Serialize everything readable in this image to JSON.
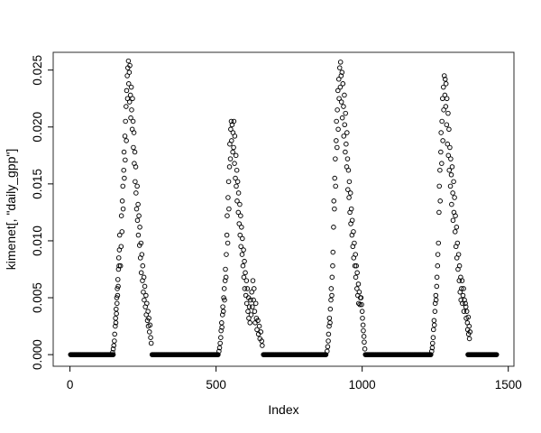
{
  "figure": {
    "background": "#ffffff",
    "frame_color": "#2b2b2b",
    "tick_color": "#000000",
    "point_color": "#000000"
  },
  "chart_data": {
    "type": "scatter",
    "title": "",
    "xlabel": "Index",
    "ylabel": "kimenet[, \"daily_gpp\"]",
    "marker": "open-circle",
    "grid": false,
    "legend": null,
    "x_ticks": [
      0,
      500,
      1000,
      1500
    ],
    "x_tick_labels": [
      "0",
      "500",
      "1000",
      "1500"
    ],
    "y_ticks": [
      0.0,
      0.005,
      0.01,
      0.015,
      0.02,
      0.025
    ],
    "y_tick_labels": [
      "0.000",
      "0.005",
      "0.010",
      "0.015",
      "0.020",
      "0.025"
    ],
    "x_range": [
      -57.4,
      1519.4
    ],
    "y_range": [
      -0.00102,
      0.02656
    ],
    "zero_value": 0.0,
    "zero_sample_step": 2,
    "zero_runs": [
      [
        2,
        148
      ],
      [
        281,
        507
      ],
      [
        662,
        877
      ],
      [
        1011,
        1236
      ],
      [
        1362,
        1460
      ]
    ],
    "points": [
      [
        146,
        0.0002
      ],
      [
        148,
        0.0005
      ],
      [
        150,
        0.0008
      ],
      [
        152,
        0.0012
      ],
      [
        153,
        0.0018
      ],
      [
        155,
        0.0025
      ],
      [
        156,
        0.0032
      ],
      [
        157,
        0.0028
      ],
      [
        158,
        0.004
      ],
      [
        159,
        0.0036
      ],
      [
        160,
        0.005
      ],
      [
        161,
        0.0045
      ],
      [
        162,
        0.0058
      ],
      [
        163,
        0.0052
      ],
      [
        164,
        0.0066
      ],
      [
        165,
        0.006
      ],
      [
        166,
        0.0075
      ],
      [
        167,
        0.0085
      ],
      [
        168,
        0.0078
      ],
      [
        169,
        0.0092
      ],
      [
        170,
        0.0105
      ],
      [
        173,
        0.0078
      ],
      [
        175,
        0.0095
      ],
      [
        176,
        0.0122
      ],
      [
        178,
        0.0108
      ],
      [
        179,
        0.0135
      ],
      [
        181,
        0.0148
      ],
      [
        182,
        0.0128
      ],
      [
        184,
        0.0162
      ],
      [
        185,
        0.0178
      ],
      [
        186,
        0.0155
      ],
      [
        188,
        0.0192
      ],
      [
        189,
        0.0171
      ],
      [
        190,
        0.0205
      ],
      [
        192,
        0.0218
      ],
      [
        193,
        0.0188
      ],
      [
        194,
        0.0232
      ],
      [
        196,
        0.0245
      ],
      [
        197,
        0.0225
      ],
      [
        198,
        0.0252
      ],
      [
        200,
        0.0258
      ],
      [
        201,
        0.0238
      ],
      [
        203,
        0.0248
      ],
      [
        204,
        0.0222
      ],
      [
        205,
        0.0254
      ],
      [
        207,
        0.0228
      ],
      [
        208,
        0.0208
      ],
      [
        210,
        0.0235
      ],
      [
        211,
        0.0215
      ],
      [
        213,
        0.0198
      ],
      [
        214,
        0.0225
      ],
      [
        216,
        0.0205
      ],
      [
        217,
        0.0182
      ],
      [
        219,
        0.0195
      ],
      [
        220,
        0.0168
      ],
      [
        222,
        0.0178
      ],
      [
        223,
        0.0152
      ],
      [
        225,
        0.0165
      ],
      [
        226,
        0.0142
      ],
      [
        228,
        0.0128
      ],
      [
        230,
        0.0148
      ],
      [
        231,
        0.0118
      ],
      [
        233,
        0.0132
      ],
      [
        234,
        0.0105
      ],
      [
        236,
        0.0122
      ],
      [
        238,
        0.0096
      ],
      [
        239,
        0.0112
      ],
      [
        241,
        0.0085
      ],
      [
        243,
        0.0098
      ],
      [
        244,
        0.0072
      ],
      [
        246,
        0.0088
      ],
      [
        248,
        0.0065
      ],
      [
        249,
        0.0078
      ],
      [
        251,
        0.0055
      ],
      [
        253,
        0.0068
      ],
      [
        254,
        0.0048
      ],
      [
        256,
        0.006
      ],
      [
        258,
        0.0042
      ],
      [
        260,
        0.0052
      ],
      [
        261,
        0.0035
      ],
      [
        263,
        0.0045
      ],
      [
        265,
        0.003
      ],
      [
        267,
        0.0038
      ],
      [
        268,
        0.0025
      ],
      [
        270,
        0.0032
      ],
      [
        272,
        0.002
      ],
      [
        274,
        0.0026
      ],
      [
        276,
        0.0015
      ],
      [
        278,
        0.001
      ],
      [
        510,
        0.0003
      ],
      [
        512,
        0.0006
      ],
      [
        514,
        0.001
      ],
      [
        516,
        0.0015
      ],
      [
        517,
        0.0021
      ],
      [
        519,
        0.0028
      ],
      [
        520,
        0.0024
      ],
      [
        522,
        0.0035
      ],
      [
        523,
        0.0042
      ],
      [
        525,
        0.0038
      ],
      [
        526,
        0.005
      ],
      [
        528,
        0.0058
      ],
      [
        529,
        0.0048
      ],
      [
        531,
        0.0065
      ],
      [
        532,
        0.0075
      ],
      [
        534,
        0.0068
      ],
      [
        535,
        0.0088
      ],
      [
        537,
        0.0105
      ],
      [
        538,
        0.0122
      ],
      [
        540,
        0.0098
      ],
      [
        541,
        0.0138
      ],
      [
        543,
        0.0152
      ],
      [
        544,
        0.0128
      ],
      [
        546,
        0.0165
      ],
      [
        547,
        0.0185
      ],
      [
        549,
        0.0172
      ],
      [
        550,
        0.0198
      ],
      [
        552,
        0.0205
      ],
      [
        553,
        0.0188
      ],
      [
        555,
        0.0202
      ],
      [
        557,
        0.0178
      ],
      [
        558,
        0.0195
      ],
      [
        560,
        0.0182
      ],
      [
        561,
        0.0205
      ],
      [
        563,
        0.0168
      ],
      [
        564,
        0.0192
      ],
      [
        566,
        0.0155
      ],
      [
        568,
        0.0175
      ],
      [
        569,
        0.0148
      ],
      [
        571,
        0.0162
      ],
      [
        572,
        0.0135
      ],
      [
        574,
        0.0152
      ],
      [
        576,
        0.0125
      ],
      [
        577,
        0.0142
      ],
      [
        579,
        0.0115
      ],
      [
        581,
        0.0132
      ],
      [
        582,
        0.0105
      ],
      [
        584,
        0.0122
      ],
      [
        585,
        0.0095
      ],
      [
        587,
        0.0112
      ],
      [
        589,
        0.0088
      ],
      [
        590,
        0.0102
      ],
      [
        592,
        0.0078
      ],
      [
        594,
        0.0092
      ],
      [
        595,
        0.0068
      ],
      [
        597,
        0.0082
      ],
      [
        598,
        0.0058
      ],
      [
        600,
        0.0072
      ],
      [
        602,
        0.0052
      ],
      [
        604,
        0.0065
      ],
      [
        605,
        0.0045
      ],
      [
        607,
        0.0058
      ],
      [
        609,
        0.0038
      ],
      [
        611,
        0.005
      ],
      [
        612,
        0.0032
      ],
      [
        614,
        0.0042
      ],
      [
        616,
        0.0028
      ],
      [
        618,
        0.0048
      ],
      [
        620,
        0.0035
      ],
      [
        622,
        0.0055
      ],
      [
        624,
        0.0042
      ],
      [
        626,
        0.0065
      ],
      [
        628,
        0.0048
      ],
      [
        630,
        0.0058
      ],
      [
        632,
        0.0038
      ],
      [
        634,
        0.0028
      ],
      [
        636,
        0.0045
      ],
      [
        638,
        0.0032
      ],
      [
        640,
        0.0022
      ],
      [
        643,
        0.003
      ],
      [
        645,
        0.0018
      ],
      [
        648,
        0.0025
      ],
      [
        650,
        0.0014
      ],
      [
        653,
        0.002
      ],
      [
        656,
        0.0012
      ],
      [
        658,
        0.0008
      ],
      [
        880,
        0.0003
      ],
      [
        882,
        0.0007
      ],
      [
        884,
        0.0012
      ],
      [
        885,
        0.0018
      ],
      [
        887,
        0.0025
      ],
      [
        888,
        0.0032
      ],
      [
        890,
        0.0028
      ],
      [
        891,
        0.004
      ],
      [
        893,
        0.0048
      ],
      [
        894,
        0.0058
      ],
      [
        896,
        0.0052
      ],
      [
        897,
        0.0068
      ],
      [
        899,
        0.0078
      ],
      [
        900,
        0.009
      ],
      [
        902,
        0.0112
      ],
      [
        903,
        0.0135
      ],
      [
        905,
        0.0128
      ],
      [
        906,
        0.0155
      ],
      [
        908,
        0.0172
      ],
      [
        909,
        0.0148
      ],
      [
        911,
        0.0188
      ],
      [
        912,
        0.0205
      ],
      [
        914,
        0.0182
      ],
      [
        915,
        0.0215
      ],
      [
        917,
        0.0232
      ],
      [
        918,
        0.0198
      ],
      [
        920,
        0.0242
      ],
      [
        921,
        0.0225
      ],
      [
        923,
        0.0252
      ],
      [
        925,
        0.0235
      ],
      [
        926,
        0.0257
      ],
      [
        928,
        0.0245
      ],
      [
        929,
        0.0222
      ],
      [
        931,
        0.0248
      ],
      [
        932,
        0.0208
      ],
      [
        934,
        0.0238
      ],
      [
        936,
        0.0218
      ],
      [
        937,
        0.0192
      ],
      [
        939,
        0.0228
      ],
      [
        940,
        0.0202
      ],
      [
        942,
        0.0178
      ],
      [
        943,
        0.0212
      ],
      [
        945,
        0.0185
      ],
      [
        947,
        0.0165
      ],
      [
        948,
        0.0195
      ],
      [
        950,
        0.0172
      ],
      [
        951,
        0.0145
      ],
      [
        953,
        0.0162
      ],
      [
        955,
        0.0138
      ],
      [
        956,
        0.0152
      ],
      [
        958,
        0.0125
      ],
      [
        960,
        0.0142
      ],
      [
        961,
        0.0115
      ],
      [
        963,
        0.0128
      ],
      [
        965,
        0.0105
      ],
      [
        966,
        0.0118
      ],
      [
        968,
        0.0095
      ],
      [
        970,
        0.0108
      ],
      [
        971,
        0.0085
      ],
      [
        973,
        0.0098
      ],
      [
        975,
        0.0078
      ],
      [
        977,
        0.0088
      ],
      [
        978,
        0.0068
      ],
      [
        980,
        0.0078
      ],
      [
        982,
        0.0058
      ],
      [
        983,
        0.0072
      ],
      [
        985,
        0.0052
      ],
      [
        987,
        0.0062
      ],
      [
        988,
        0.0045
      ],
      [
        990,
        0.0055
      ],
      [
        992,
        0.0044
      ],
      [
        994,
        0.005
      ],
      [
        996,
        0.005
      ],
      [
        998,
        0.0044
      ],
      [
        1000,
        0.0038
      ],
      [
        1001,
        0.0032
      ],
      [
        1003,
        0.0026
      ],
      [
        1004,
        0.0021
      ],
      [
        1006,
        0.0016
      ],
      [
        1007,
        0.0011
      ],
      [
        1009,
        0.0005
      ],
      [
        1238,
        0.0003
      ],
      [
        1240,
        0.0006
      ],
      [
        1241,
        0.001
      ],
      [
        1243,
        0.0015
      ],
      [
        1244,
        0.0022
      ],
      [
        1246,
        0.003
      ],
      [
        1247,
        0.0026
      ],
      [
        1249,
        0.0038
      ],
      [
        1250,
        0.0045
      ],
      [
        1252,
        0.0052
      ],
      [
        1253,
        0.0048
      ],
      [
        1255,
        0.006
      ],
      [
        1256,
        0.0068
      ],
      [
        1258,
        0.0078
      ],
      [
        1259,
        0.0088
      ],
      [
        1261,
        0.0098
      ],
      [
        1263,
        0.0125
      ],
      [
        1264,
        0.0148
      ],
      [
        1266,
        0.0162
      ],
      [
        1267,
        0.0135
      ],
      [
        1269,
        0.0178
      ],
      [
        1270,
        0.0195
      ],
      [
        1272,
        0.0168
      ],
      [
        1273,
        0.0205
      ],
      [
        1275,
        0.0225
      ],
      [
        1276,
        0.0188
      ],
      [
        1278,
        0.0235
      ],
      [
        1279,
        0.0215
      ],
      [
        1281,
        0.0245
      ],
      [
        1283,
        0.0228
      ],
      [
        1284,
        0.0242
      ],
      [
        1286,
        0.0218
      ],
      [
        1287,
        0.0238
      ],
      [
        1289,
        0.0202
      ],
      [
        1290,
        0.0225
      ],
      [
        1292,
        0.0185
      ],
      [
        1294,
        0.0212
      ],
      [
        1295,
        0.0175
      ],
      [
        1297,
        0.0198
      ],
      [
        1298,
        0.0162
      ],
      [
        1300,
        0.0182
      ],
      [
        1302,
        0.0148
      ],
      [
        1303,
        0.0172
      ],
      [
        1305,
        0.0158
      ],
      [
        1306,
        0.0132
      ],
      [
        1308,
        0.0165
      ],
      [
        1310,
        0.0142
      ],
      [
        1311,
        0.0118
      ],
      [
        1313,
        0.0152
      ],
      [
        1314,
        0.0125
      ],
      [
        1316,
        0.0138
      ],
      [
        1318,
        0.0108
      ],
      [
        1319,
        0.0122
      ],
      [
        1321,
        0.0095
      ],
      [
        1323,
        0.0112
      ],
      [
        1324,
        0.0085
      ],
      [
        1326,
        0.0098
      ],
      [
        1328,
        0.0075
      ],
      [
        1330,
        0.0088
      ],
      [
        1332,
        0.0065
      ],
      [
        1333,
        0.0078
      ],
      [
        1335,
        0.0055
      ],
      [
        1337,
        0.0068
      ],
      [
        1338,
        0.0048
      ],
      [
        1340,
        0.0058
      ],
      [
        1342,
        0.0065
      ],
      [
        1343,
        0.0045
      ],
      [
        1345,
        0.0052
      ],
      [
        1347,
        0.0058
      ],
      [
        1348,
        0.0038
      ],
      [
        1350,
        0.0048
      ],
      [
        1353,
        0.0045
      ],
      [
        1355,
        0.0042
      ],
      [
        1356,
        0.0032
      ],
      [
        1358,
        0.0038
      ],
      [
        1360,
        0.0028
      ],
      [
        1361,
        0.0022
      ],
      [
        1363,
        0.0033
      ],
      [
        1364,
        0.0018
      ],
      [
        1366,
        0.0025
      ],
      [
        1367,
        0.0014
      ],
      [
        1369,
        0.002
      ]
    ]
  }
}
